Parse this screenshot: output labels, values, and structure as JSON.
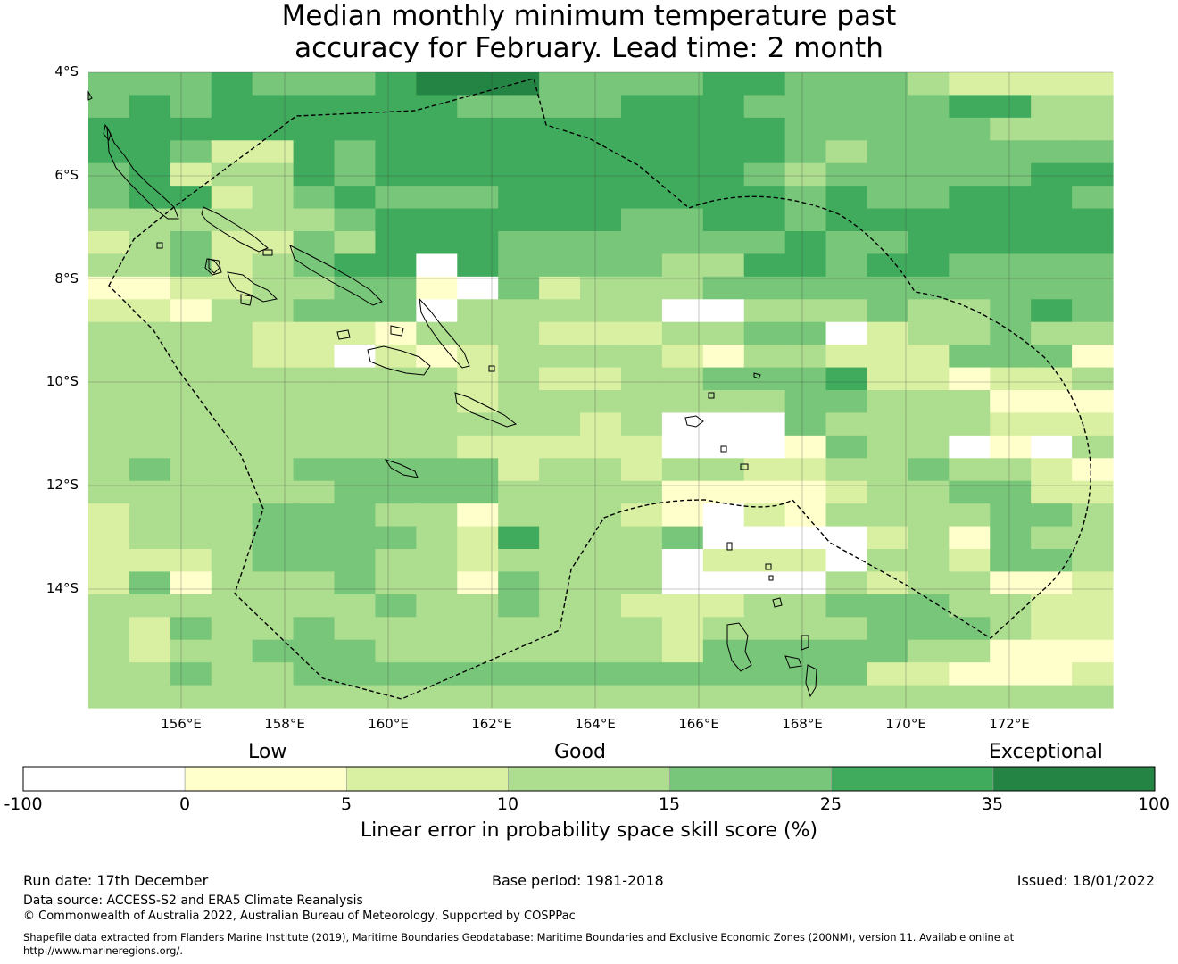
{
  "title": {
    "line1": "Median monthly minimum temperature past",
    "line2": "accuracy for February. Lead time: 2 month"
  },
  "map": {
    "lat_labels": [
      "4°S",
      "6°S",
      "8°S",
      "10°S",
      "12°S",
      "14°S"
    ],
    "lon_labels": [
      "156°E",
      "158°E",
      "160°E",
      "162°E",
      "164°E",
      "166°E",
      "168°E",
      "170°E",
      "172°E"
    ],
    "region": "Solomon Islands and Vanuatu region",
    "cell_grid_levels": [
      "4445444566644445544432222",
      "4545555554444555444445533",
      "5555555555555555544444333",
      "5542254555555555543444444",
      "4523354555555555434444455",
      "4552345444555555545445554",
      "3333334555555445545555555",
      "2342243555444444454455555",
      "3342345505444433554554444",
      "1122334410423334444444444",
      "2213344403333300333433454",
      "3333222133322233440233433",
      "3333220212333321332224441",
      "3333333332322334445221223",
      "3333333332333333344333111",
      "3333333333332300043333222",
      "3333333332222200014330103",
      "3433344444233233223343321",
      "3333334444333311112334422",
      "2333444331333210213333443",
      "2333444432533340000231433",
      "2223444332333302220332443",
      "2413334331433300003233112",
      "3333333433433222334443322",
      "3243343333333323333444322",
      "3233444333333324444433111",
      "3343344444444444444221112",
      "3333333333333333333333333"
    ]
  },
  "legend": {
    "colors": [
      "#ffffff",
      "#ffffcc",
      "#d9f0a3",
      "#addd8e",
      "#78c679",
      "#41ab5d",
      "#238443"
    ],
    "ticks": [
      "-100",
      "0",
      "5",
      "10",
      "15",
      "25",
      "35",
      "100"
    ],
    "categories": {
      "low": "Low",
      "good": "Good",
      "exceptional": "Exceptional"
    },
    "title": "Linear error in probability space skill score (%)"
  },
  "footer": {
    "run_date": "Run date: 17th December",
    "base_period": "Base period: 1981-2018",
    "issued": "Issued: 18/01/2022",
    "data_source": "Data source: ACCESS-S2 and ERA5 Climate Reanalysis",
    "copyright": "© Commonwealth of Australia 2022, Australian Bureau of Meteorology, Supported by COSPPac",
    "shapefile": "Shapefile data extracted from Flanders Marine Institute (2019), Maritime Boundaries Geodatabase: Maritime Boundaries and Exclusive Economic Zones (200NM), version 11. Available online at",
    "url": "http://www.marineregions.org/."
  }
}
